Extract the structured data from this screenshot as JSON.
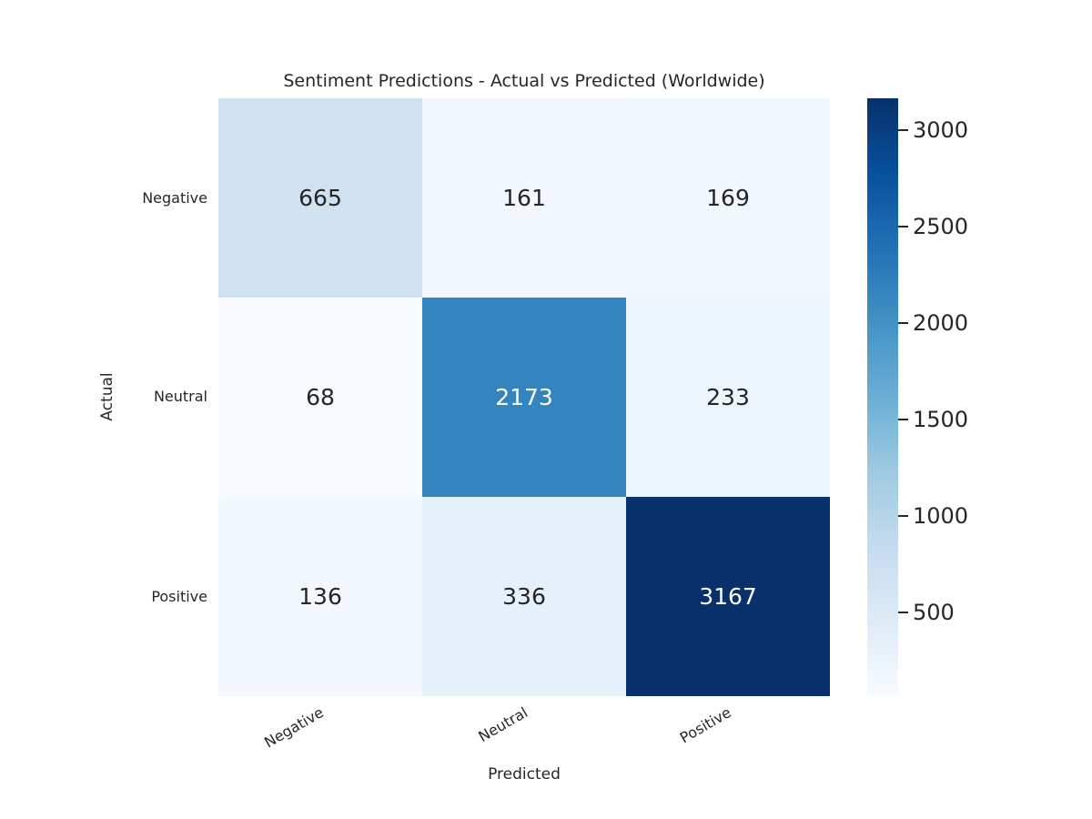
{
  "title": "Sentiment Predictions - Actual vs Predicted (Worldwide)",
  "axes": {
    "x_label": "Predicted",
    "y_label": "Actual",
    "x_ticks": [
      "Negative",
      "Neutral",
      "Positive"
    ],
    "y_ticks": [
      "Negative",
      "Neutral",
      "Positive"
    ]
  },
  "colorbar": {
    "ticks": [
      "3000",
      "2500",
      "2000",
      "1500",
      "1000",
      "500"
    ],
    "tick_values": [
      3000,
      2500,
      2000,
      1500,
      1000,
      500
    ]
  },
  "chart_data": {
    "type": "heatmap",
    "title": "Sentiment Predictions - Actual vs Predicted (Worldwide)",
    "xlabel": "Predicted",
    "ylabel": "Actual",
    "x_categories": [
      "Negative",
      "Neutral",
      "Positive"
    ],
    "y_categories": [
      "Negative",
      "Neutral",
      "Positive"
    ],
    "matrix": [
      [
        665,
        161,
        169
      ],
      [
        68,
        2173,
        233
      ],
      [
        136,
        336,
        3167
      ]
    ],
    "vmin": 68,
    "vmax": 3167,
    "colormap": "Blues",
    "colormap_stops": [
      "#f7fbff",
      "#deebf7",
      "#c6dbef",
      "#9ecae1",
      "#6baed6",
      "#4292c6",
      "#2171b5",
      "#08519c",
      "#08306b"
    ],
    "text_color": "#262626",
    "cells": [
      {
        "actual": "Negative",
        "predicted": "Negative",
        "value": "665",
        "bg": "#d0e1f2",
        "fg": "#262626"
      },
      {
        "actual": "Negative",
        "predicted": "Neutral",
        "value": "161",
        "bg": "#f1f7fd",
        "fg": "#262626"
      },
      {
        "actual": "Negative",
        "predicted": "Positive",
        "value": "169",
        "bg": "#f0f7fd",
        "fg": "#262626"
      },
      {
        "actual": "Neutral",
        "predicted": "Negative",
        "value": "68",
        "bg": "#f7fbff",
        "fg": "#262626"
      },
      {
        "actual": "Neutral",
        "predicted": "Neutral",
        "value": "2173",
        "bg": "#3484bf",
        "fg": "#ffffff"
      },
      {
        "actual": "Neutral",
        "predicted": "Positive",
        "value": "233",
        "bg": "#ecf4fc",
        "fg": "#262626"
      },
      {
        "actual": "Positive",
        "predicted": "Negative",
        "value": "136",
        "bg": "#f3f8fe",
        "fg": "#262626"
      },
      {
        "actual": "Positive",
        "predicted": "Neutral",
        "value": "336",
        "bg": "#e6f0fa",
        "fg": "#262626"
      },
      {
        "actual": "Positive",
        "predicted": "Positive",
        "value": "3167",
        "bg": "#08306b",
        "fg": "#ffffff"
      }
    ]
  }
}
